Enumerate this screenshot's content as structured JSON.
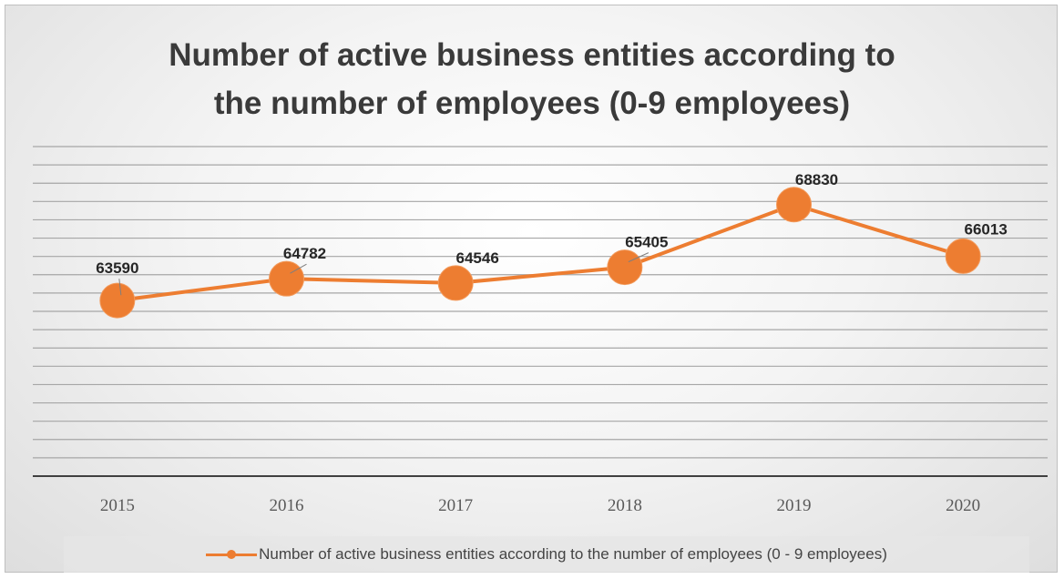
{
  "chart_data": {
    "type": "line",
    "title_lines": [
      "Number of active business entities according to",
      "the number of employees (0-9 employees)"
    ],
    "categories": [
      "2015",
      "2016",
      "2017",
      "2018",
      "2019",
      "2020"
    ],
    "series": [
      {
        "name": "Number of active business entities according to the number of employees (0 - 9 employees)",
        "values": [
          63590,
          64782,
          64546,
          65405,
          68830,
          66013
        ],
        "color": "#ed7d31"
      }
    ],
    "data_labels": [
      "63590",
      "64782",
      "64546",
      "65405",
      "68830",
      "66013"
    ],
    "ylim": [
      54000,
      72000
    ],
    "y_gridline_step": 1000,
    "y_tick_labels_shown": false,
    "grid": true,
    "legend_position": "bottom",
    "marker": "circle"
  }
}
